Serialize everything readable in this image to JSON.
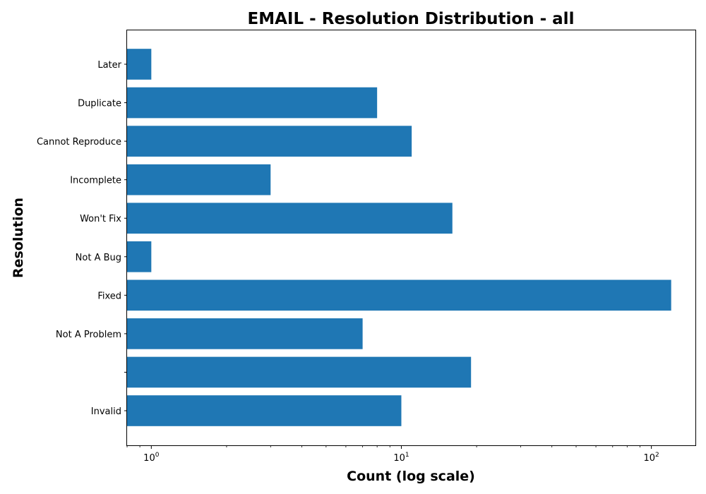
{
  "chart_data": {
    "type": "bar",
    "orientation": "horizontal",
    "title": "EMAIL - Resolution Distribution - all",
    "xlabel": "Count (log scale)",
    "ylabel": "Resolution",
    "xscale": "log",
    "xlim": [
      0.8,
      150
    ],
    "xticks": [
      {
        "base": "10",
        "exp": "0",
        "value": 1
      },
      {
        "base": "10",
        "exp": "1",
        "value": 10
      },
      {
        "base": "10",
        "exp": "2",
        "value": 100
      }
    ],
    "categories": [
      "Later",
      "Duplicate",
      "Cannot Reproduce",
      "Incomplete",
      "Won't Fix",
      "Not A Bug",
      "Fixed",
      "Not A Problem",
      "",
      "Invalid"
    ],
    "values": [
      1,
      8,
      11,
      3,
      16,
      1,
      120,
      7,
      19,
      10
    ],
    "bar_color": "#1f77b4",
    "grid": false,
    "legend": "none"
  }
}
